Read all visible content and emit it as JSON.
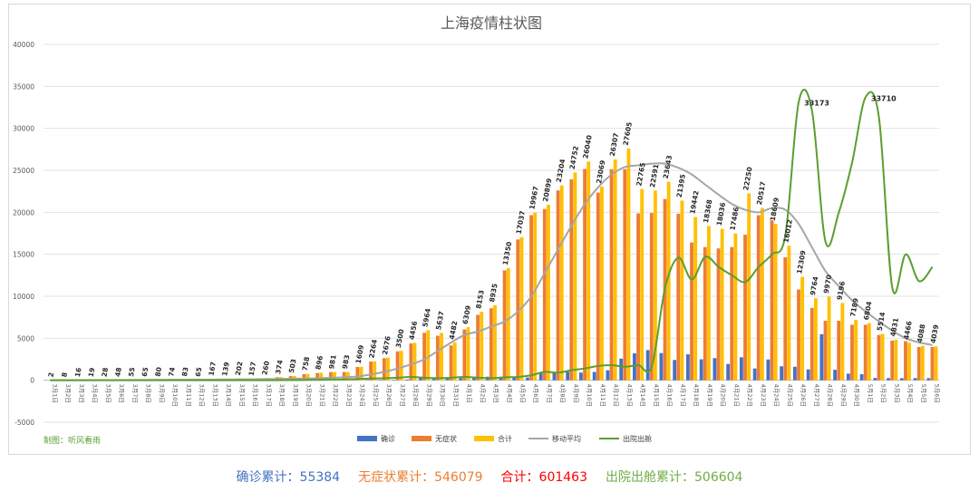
{
  "chart_data": {
    "type": "bar",
    "title": "上海疫情柱状图",
    "credit": "制图：听风看雨",
    "ylim": [
      -5000,
      40000
    ],
    "yticks": [
      -5000,
      0,
      5000,
      10000,
      15000,
      20000,
      25000,
      30000,
      35000,
      40000
    ],
    "grid": true,
    "legend_position": "bottom",
    "categories": [
      "3月1日",
      "3月2日",
      "3月3日",
      "3月4日",
      "3月5日",
      "3月6日",
      "3月7日",
      "3月8日",
      "3月9日",
      "3月10日",
      "3月11日",
      "3月12日",
      "3月13日",
      "3月14日",
      "3月15日",
      "3月16日",
      "3月17日",
      "3月18日",
      "3月19日",
      "3月20日",
      "3月21日",
      "3月22日",
      "3月23日",
      "3月24日",
      "3月25日",
      "3月26日",
      "3月27日",
      "3月28日",
      "3月29日",
      "3月30日",
      "3月31日",
      "4月1日",
      "4月2日",
      "4月3日",
      "4月4日",
      "4月5日",
      "4月6日",
      "4月7日",
      "4月8日",
      "4月9日",
      "4月10日",
      "4月11日",
      "4月12日",
      "4月13日",
      "4月14日",
      "4月15日",
      "4月16日",
      "4月17日",
      "4月18日",
      "4月19日",
      "4月20日",
      "4月21日",
      "4月22日",
      "4月23日",
      "4月24日",
      "4月25日",
      "4月26日",
      "4月27日",
      "4月28日",
      "4月29日",
      "4月30日",
      "5月1日",
      "5月2日",
      "5月3日",
      "5月4日",
      "5月5日",
      "5月6日"
    ],
    "series": [
      {
        "name": "确诊",
        "kind": "bar",
        "color": "#4472c4",
        "values": [
          1,
          0,
          0,
          0,
          0,
          3,
          1,
          3,
          4,
          11,
          5,
          1,
          41,
          5,
          5,
          8,
          57,
          8,
          17,
          24,
          31,
          4,
          4,
          29,
          38,
          45,
          50,
          96,
          326,
          355,
          358,
          260,
          438,
          425,
          268,
          311,
          322,
          824,
          1015,
          1006,
          914,
          994,
          1189,
          2573,
          3200,
          3590,
          3238,
          2417,
          3084,
          2494,
          2634,
          1931,
          2736,
          1401,
          2472,
          1661,
          1606,
          1292,
          5487,
          1249,
          788,
          727,
          274,
          260,
          245,
          261,
          253
        ]
      },
      {
        "name": "无症状",
        "kind": "bar",
        "color": "#ed7d31",
        "values": [
          1,
          8,
          14,
          16,
          45,
          45,
          51,
          62,
          76,
          64,
          78,
          64,
          128,
          130,
          197,
          150,
          203,
          366,
          492,
          734,
          865,
          977,
          979,
          1580,
          2231,
          2631,
          3450,
          4381,
          5656,
          5298,
          4144,
          6051,
          7788,
          8581,
          13086,
          16766,
          19660,
          20398,
          22609,
          23937,
          25173,
          22348,
          25141,
          25146,
          19872,
          19923,
          21582,
          19831,
          16407,
          15861,
          15698,
          15861,
          17332,
          19657,
          19049,
          14651,
          10806,
          8621,
          7084,
          7084,
          6606,
          6606,
          5395,
          4722,
          4651,
          3961,
          3961
        ]
      },
      {
        "name": "合计",
        "kind": "bar",
        "color": "#ffc000",
        "values": [
          2,
          8,
          16,
          19,
          28,
          48,
          55,
          65,
          80,
          74,
          83,
          65,
          167,
          139,
          202,
          157,
          260,
          374,
          503,
          758,
          896,
          981,
          983,
          1609,
          2264,
          2676,
          3500,
          4456,
          5964,
          5637,
          4482,
          6309,
          8153,
          8935,
          13350,
          17037,
          19967,
          20899,
          23204,
          24752,
          26040,
          23069,
          26307,
          27605,
          22765,
          22591,
          23643,
          21395,
          19442,
          18368,
          18036,
          17486,
          22250,
          20517,
          18609,
          16012,
          12309,
          9764,
          9970,
          9196,
          7189,
          6804,
          5514,
          4831,
          4466,
          4088,
          4039
        ]
      },
      {
        "name": "移动平均",
        "kind": "line",
        "color": "#a6a6a6",
        "values": [
          2,
          5,
          9,
          11,
          15,
          20,
          27,
          35,
          43,
          54,
          62,
          69,
          76,
          85,
          100,
          115,
          134,
          155,
          183,
          212,
          244,
          300,
          350,
          450,
          700,
          1000,
          1400,
          1900,
          2500,
          3500,
          4500,
          5400,
          5800,
          6400,
          7000,
          8200,
          10000,
          12800,
          15600,
          18400,
          21000,
          23000,
          24500,
          25400,
          25600,
          25800,
          25800,
          25300,
          24500,
          23300,
          22100,
          21000,
          20300,
          20000,
          20500,
          20300,
          18600,
          15800,
          13000,
          11200,
          9500,
          8200,
          7000,
          5900,
          5000,
          4500,
          4200
        ]
      },
      {
        "name": "出院出舱",
        "kind": "line",
        "color": "#5b9e2f",
        "values": [
          0,
          0,
          0,
          0,
          0,
          0,
          0,
          0,
          0,
          0,
          0,
          0,
          0,
          0,
          0,
          0,
          0,
          10,
          20,
          30,
          50,
          80,
          100,
          150,
          200,
          250,
          300,
          400,
          300,
          250,
          300,
          400,
          300,
          250,
          350,
          400,
          600,
          1000,
          900,
          1200,
          1400,
          1700,
          1800,
          1600,
          1800,
          1600,
          11000,
          14600,
          12000,
          14700,
          13500,
          12500,
          11700,
          13500,
          15000,
          17300,
          33173,
          32000,
          16500,
          20000,
          26000,
          33710,
          31300,
          11000,
          15000,
          11800,
          13500
        ]
      }
    ],
    "value_labels": [
      {
        "series": "出院出舱",
        "category": "4月26日",
        "value": 33173
      },
      {
        "series": "出院出舱",
        "category": "5月1日",
        "value": 33710
      }
    ],
    "totals": [
      {
        "label": "确诊累计：",
        "value": "55384",
        "color": "#4472c4"
      },
      {
        "label": "无症状累计：",
        "value": "546079",
        "color": "#ed7d31"
      },
      {
        "label": "合计：",
        "value": "601463",
        "color": "#ff0000"
      },
      {
        "label": "出院出舱累计：",
        "value": "506604",
        "color": "#70ad47"
      }
    ]
  }
}
